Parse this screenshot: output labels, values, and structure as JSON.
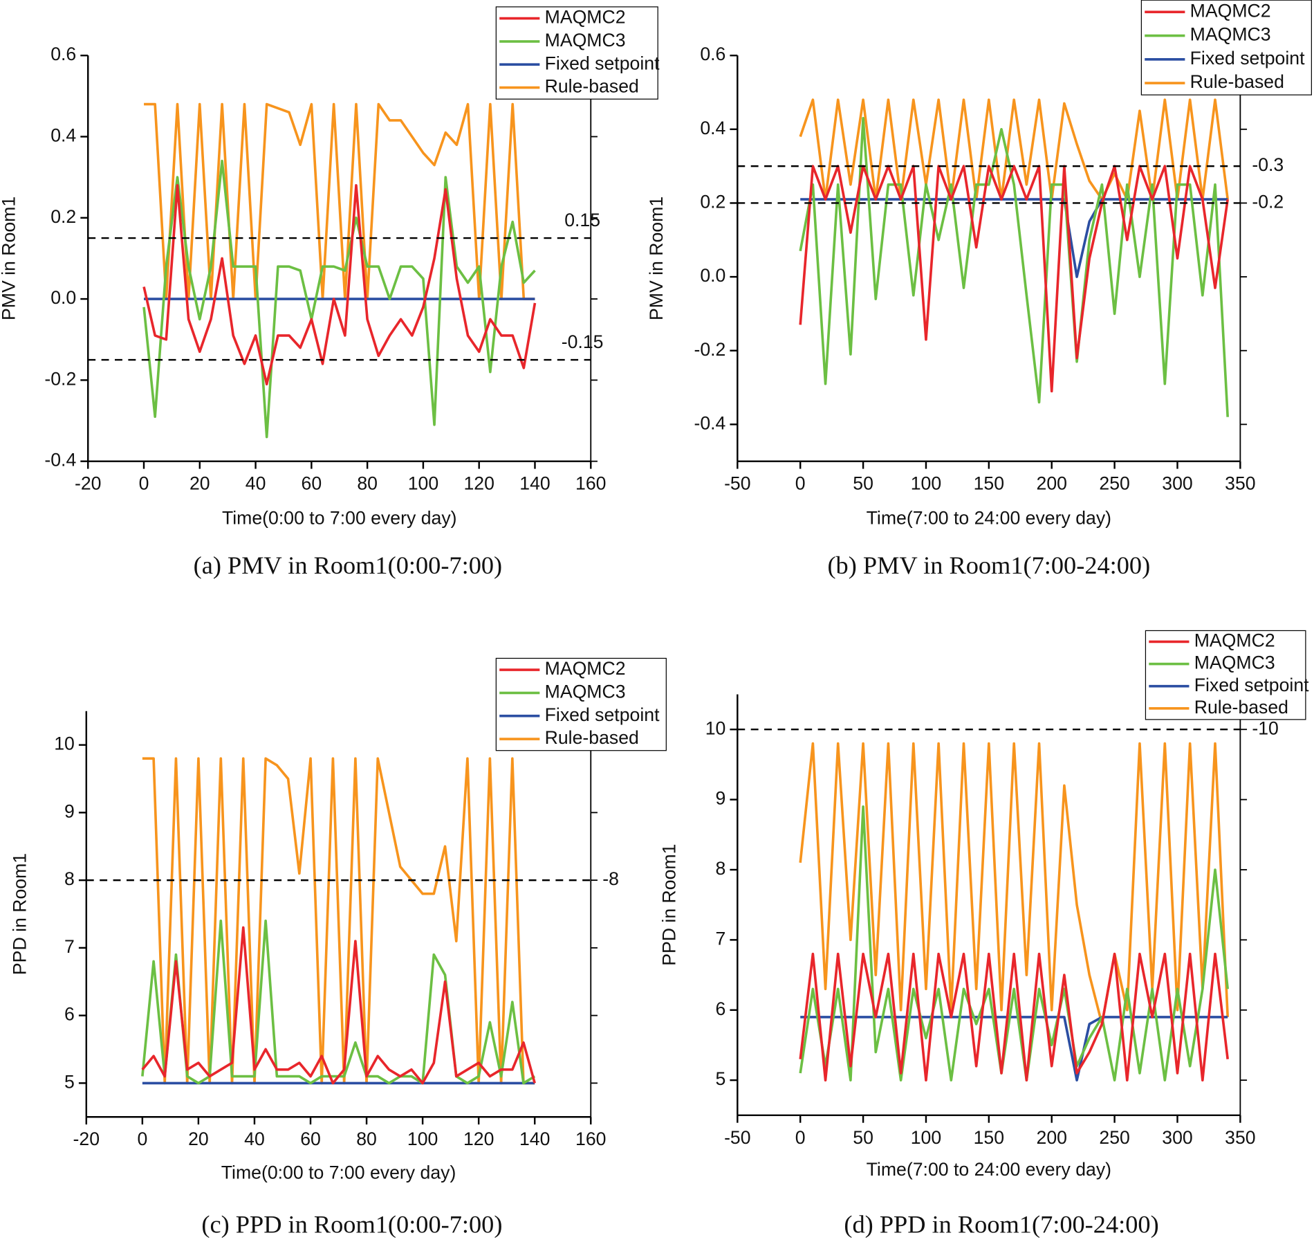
{
  "chart_data": [
    {
      "type": "line",
      "caption": "(a) PMV in Room1(0:00-7:00)",
      "x_label": "Time(0:00 to 7:00 every day)",
      "y_label": "PMV in Room1",
      "xlim": [
        -20,
        160
      ],
      "xticks": [
        -20,
        0,
        20,
        40,
        60,
        80,
        100,
        120,
        140,
        160
      ],
      "ylim": [
        -0.4,
        0.6
      ],
      "yticks": [
        -0.4,
        -0.2,
        {
          "value": 0,
          "label": "0.0"
        },
        0.2,
        0.4,
        0.6
      ],
      "reference_lines": [
        0.15,
        -0.15
      ],
      "x": [
        0,
        4,
        8,
        12,
        16,
        20,
        24,
        28,
        32,
        36,
        40,
        44,
        48,
        52,
        56,
        60,
        64,
        68,
        72,
        76,
        80,
        84,
        88,
        92,
        96,
        100,
        104,
        108,
        112,
        116,
        120,
        124,
        128,
        132,
        136,
        140
      ],
      "series": [
        {
          "name": "MAQMC2",
          "color": "#e8262b",
          "values": [
            0.03,
            -0.09,
            -0.1,
            0.28,
            -0.05,
            -0.13,
            -0.05,
            0.1,
            -0.09,
            -0.16,
            -0.09,
            -0.21,
            -0.09,
            -0.09,
            -0.12,
            -0.05,
            -0.16,
            0.0,
            -0.09,
            0.28,
            -0.05,
            -0.14,
            -0.09,
            -0.05,
            -0.09,
            -0.02,
            0.1,
            0.27,
            0.05,
            -0.09,
            -0.13,
            -0.05,
            -0.09,
            -0.09,
            -0.17,
            -0.01
          ]
        },
        {
          "name": "MAQMC3",
          "color": "#6cbf43",
          "values": [
            -0.02,
            -0.29,
            0.08,
            0.3,
            0.08,
            -0.05,
            0.08,
            0.34,
            0.08,
            0.08,
            0.08,
            -0.34,
            0.08,
            0.08,
            0.07,
            -0.05,
            0.08,
            0.08,
            0.07,
            0.2,
            0.08,
            0.08,
            0.0,
            0.08,
            0.08,
            0.05,
            -0.31,
            0.3,
            0.08,
            0.04,
            0.08,
            -0.18,
            0.08,
            0.19,
            0.04,
            0.07
          ]
        },
        {
          "name": "Fixed setpoint",
          "color": "#2b4ea2",
          "values": [
            0,
            0,
            0,
            0,
            0,
            0,
            0,
            0,
            0,
            0,
            0,
            0,
            0,
            0,
            0,
            0,
            0,
            0,
            0,
            0,
            0,
            0,
            0,
            0,
            0,
            0,
            0,
            0,
            0,
            0,
            0,
            0,
            0,
            0,
            0,
            0
          ]
        },
        {
          "name": "Rule-based",
          "color": "#f7941d",
          "values": [
            0.48,
            0.48,
            0.0,
            0.48,
            0.0,
            0.48,
            0.0,
            0.48,
            0.0,
            0.48,
            0.0,
            0.48,
            0.47,
            0.46,
            0.38,
            0.48,
            0.0,
            0.48,
            0.0,
            0.48,
            0.0,
            0.48,
            0.44,
            0.44,
            0.4,
            0.36,
            0.33,
            0.41,
            0.38,
            0.48,
            0.0,
            0.48,
            0.0,
            0.48,
            0.0,
            0.0
          ]
        }
      ]
    },
    {
      "type": "line",
      "caption": "(b) PMV in Room1(7:00-24:00)",
      "x_label": "Time(7:00 to 24:00 every day)",
      "y_label": "PMV in Room1",
      "xlim": [
        -50,
        350
      ],
      "xticks": [
        -50,
        0,
        50,
        100,
        150,
        200,
        250,
        300,
        350
      ],
      "ylim": [
        -0.5,
        0.6
      ],
      "yticks": [
        -0.4,
        -0.2,
        {
          "value": 0,
          "label": "0.0"
        },
        0.2,
        0.4,
        0.6
      ],
      "reference_lines": [
        {
          "value": 0.3,
          "label": "-0.3"
        },
        {
          "value": 0.2,
          "label": "-0.2"
        }
      ],
      "x": [
        0,
        10,
        20,
        30,
        40,
        50,
        60,
        70,
        80,
        90,
        100,
        110,
        120,
        130,
        140,
        150,
        160,
        170,
        180,
        190,
        200,
        210,
        220,
        230,
        240,
        250,
        260,
        270,
        280,
        290,
        300,
        310,
        320,
        330,
        340
      ],
      "series": [
        {
          "name": "MAQMC2",
          "color": "#e8262b",
          "values": [
            -0.13,
            0.3,
            0.21,
            0.3,
            0.12,
            0.3,
            0.21,
            0.3,
            0.21,
            0.3,
            -0.17,
            0.3,
            0.21,
            0.3,
            0.08,
            0.3,
            0.21,
            0.3,
            0.21,
            0.3,
            -0.31,
            0.3,
            -0.22,
            0.05,
            0.2,
            0.3,
            0.1,
            0.3,
            0.21,
            0.3,
            0.05,
            0.3,
            0.21,
            -0.03,
            0.21
          ]
        },
        {
          "name": "MAQMC3",
          "color": "#6cbf43",
          "values": [
            0.07,
            0.25,
            -0.29,
            0.25,
            -0.21,
            0.43,
            -0.06,
            0.25,
            0.25,
            -0.05,
            0.25,
            0.1,
            0.25,
            -0.03,
            0.25,
            0.25,
            0.4,
            0.25,
            -0.05,
            -0.34,
            0.25,
            0.25,
            -0.23,
            0.1,
            0.25,
            -0.1,
            0.25,
            0.0,
            0.25,
            -0.29,
            0.25,
            0.25,
            -0.05,
            0.25,
            -0.38
          ]
        },
        {
          "name": "Fixed setpoint",
          "color": "#2b4ea2",
          "values": [
            0.21,
            0.21,
            0.21,
            0.21,
            0.21,
            0.21,
            0.21,
            0.21,
            0.21,
            0.21,
            0.21,
            0.21,
            0.21,
            0.21,
            0.21,
            0.21,
            0.21,
            0.21,
            0.21,
            0.21,
            0.21,
            0.21,
            0.0,
            0.15,
            0.21,
            0.21,
            0.21,
            0.21,
            0.21,
            0.21,
            0.21,
            0.21,
            0.21,
            0.21,
            0.21
          ]
        },
        {
          "name": "Rule-based",
          "color": "#f7941d",
          "values": [
            0.38,
            0.48,
            0.21,
            0.48,
            0.25,
            0.48,
            0.21,
            0.48,
            0.21,
            0.48,
            0.25,
            0.48,
            0.21,
            0.48,
            0.21,
            0.48,
            0.21,
            0.48,
            0.25,
            0.48,
            0.21,
            0.47,
            0.36,
            0.26,
            0.21,
            0.28,
            0.21,
            0.45,
            0.21,
            0.48,
            0.21,
            0.48,
            0.21,
            0.48,
            0.21
          ]
        }
      ]
    },
    {
      "type": "line",
      "caption": "(c) PPD in Room1(0:00-7:00)",
      "x_label": "Time(0:00 to 7:00 every day)",
      "y_label": "PPD in Room1",
      "xlim": [
        -20,
        160
      ],
      "xticks": [
        -20,
        0,
        20,
        40,
        60,
        80,
        100,
        120,
        140,
        160
      ],
      "ylim": [
        4.5,
        10.5
      ],
      "yticks": [
        5,
        6,
        7,
        8,
        9,
        10
      ],
      "reference_lines": [
        {
          "value": 8,
          "label": "-8"
        }
      ],
      "x": [
        0,
        4,
        8,
        12,
        16,
        20,
        24,
        28,
        32,
        36,
        40,
        44,
        48,
        52,
        56,
        60,
        64,
        68,
        72,
        76,
        80,
        84,
        88,
        92,
        96,
        100,
        104,
        108,
        112,
        116,
        120,
        124,
        128,
        132,
        136,
        140
      ],
      "series": [
        {
          "name": "MAQMC2",
          "color": "#e8262b",
          "values": [
            5.2,
            5.4,
            5.1,
            6.8,
            5.2,
            5.3,
            5.1,
            5.2,
            5.3,
            7.3,
            5.2,
            5.5,
            5.2,
            5.2,
            5.3,
            5.1,
            5.4,
            5.0,
            5.2,
            7.1,
            5.1,
            5.4,
            5.2,
            5.1,
            5.2,
            5.0,
            5.3,
            6.5,
            5.1,
            5.2,
            5.3,
            5.1,
            5.2,
            5.2,
            5.6,
            5.0
          ]
        },
        {
          "name": "MAQMC3",
          "color": "#6cbf43",
          "values": [
            5.1,
            6.8,
            5.1,
            6.9,
            5.1,
            5.0,
            5.1,
            7.4,
            5.1,
            5.1,
            5.1,
            7.4,
            5.1,
            5.1,
            5.1,
            5.0,
            5.1,
            5.1,
            5.1,
            5.6,
            5.1,
            5.1,
            5.0,
            5.1,
            5.1,
            5.0,
            6.9,
            6.6,
            5.1,
            5.0,
            5.1,
            5.9,
            5.1,
            6.2,
            5.0,
            5.1
          ]
        },
        {
          "name": "Fixed setpoint",
          "color": "#2b4ea2",
          "values": [
            5,
            5,
            5,
            5,
            5,
            5,
            5,
            5,
            5,
            5,
            5,
            5,
            5,
            5,
            5,
            5,
            5,
            5,
            5,
            5,
            5,
            5,
            5,
            5,
            5,
            5,
            5,
            5,
            5,
            5,
            5,
            5,
            5,
            5,
            5,
            5
          ]
        },
        {
          "name": "Rule-based",
          "color": "#f7941d",
          "values": [
            9.8,
            9.8,
            5.0,
            9.8,
            5.0,
            9.8,
            5.0,
            9.8,
            5.0,
            9.8,
            5.0,
            9.8,
            9.7,
            9.5,
            8.1,
            9.8,
            5.0,
            9.8,
            5.0,
            9.8,
            5.0,
            9.8,
            9.0,
            8.2,
            8.0,
            7.8,
            7.8,
            8.5,
            7.1,
            9.8,
            5.0,
            9.8,
            5.0,
            9.8,
            5.0,
            5.0
          ]
        }
      ]
    },
    {
      "type": "line",
      "caption": "(d) PPD in Room1(7:00-24:00)",
      "x_label": "Time(7:00 to 24:00 every day)",
      "y_label": "PPD in Room1",
      "xlim": [
        -50,
        350
      ],
      "xticks": [
        -50,
        0,
        50,
        100,
        150,
        200,
        250,
        300,
        350
      ],
      "ylim": [
        4.5,
        10.5
      ],
      "yticks": [
        5,
        6,
        7,
        8,
        9,
        10
      ],
      "reference_lines": [
        {
          "value": 10,
          "label": "-10"
        }
      ],
      "x": [
        0,
        10,
        20,
        30,
        40,
        50,
        60,
        70,
        80,
        90,
        100,
        110,
        120,
        130,
        140,
        150,
        160,
        170,
        180,
        190,
        200,
        210,
        220,
        230,
        240,
        250,
        260,
        270,
        280,
        290,
        300,
        310,
        320,
        330,
        340
      ],
      "series": [
        {
          "name": "MAQMC2",
          "color": "#e8262b",
          "values": [
            5.3,
            6.8,
            5.0,
            6.8,
            5.2,
            6.8,
            5.9,
            6.8,
            5.1,
            6.8,
            5.0,
            6.8,
            5.9,
            6.8,
            5.2,
            6.8,
            5.1,
            6.8,
            5.0,
            6.8,
            5.2,
            6.5,
            5.1,
            5.4,
            5.8,
            6.8,
            5.0,
            6.8,
            5.9,
            6.8,
            5.1,
            6.8,
            5.0,
            6.8,
            5.3
          ]
        },
        {
          "name": "MAQMC3",
          "color": "#6cbf43",
          "values": [
            5.1,
            6.3,
            5.2,
            6.3,
            5.0,
            8.9,
            5.4,
            6.3,
            5.0,
            6.3,
            5.6,
            6.3,
            5.0,
            6.3,
            5.8,
            6.3,
            5.1,
            6.3,
            5.0,
            6.3,
            5.5,
            6.3,
            5.2,
            5.6,
            5.9,
            5.0,
            6.3,
            5.1,
            6.3,
            5.0,
            6.3,
            5.2,
            6.3,
            8.0,
            6.3
          ]
        },
        {
          "name": "Fixed setpoint",
          "color": "#2b4ea2",
          "values": [
            5.9,
            5.9,
            5.9,
            5.9,
            5.9,
            5.9,
            5.9,
            5.9,
            5.9,
            5.9,
            5.9,
            5.9,
            5.9,
            5.9,
            5.9,
            5.9,
            5.9,
            5.9,
            5.9,
            5.9,
            5.9,
            5.9,
            5.0,
            5.8,
            5.9,
            5.9,
            5.9,
            5.9,
            5.9,
            5.9,
            5.9,
            5.9,
            5.9,
            5.9,
            5.9
          ]
        },
        {
          "name": "Rule-based",
          "color": "#f7941d",
          "values": [
            8.1,
            9.8,
            6.3,
            9.8,
            7.0,
            9.8,
            6.5,
            9.8,
            6.0,
            9.8,
            6.3,
            9.8,
            6.0,
            9.8,
            6.3,
            9.8,
            6.0,
            9.8,
            6.5,
            9.8,
            6.0,
            9.2,
            7.5,
            6.5,
            5.8,
            6.8,
            6.0,
            9.8,
            6.3,
            9.8,
            6.0,
            9.8,
            6.3,
            9.8,
            5.9
          ]
        }
      ]
    }
  ]
}
